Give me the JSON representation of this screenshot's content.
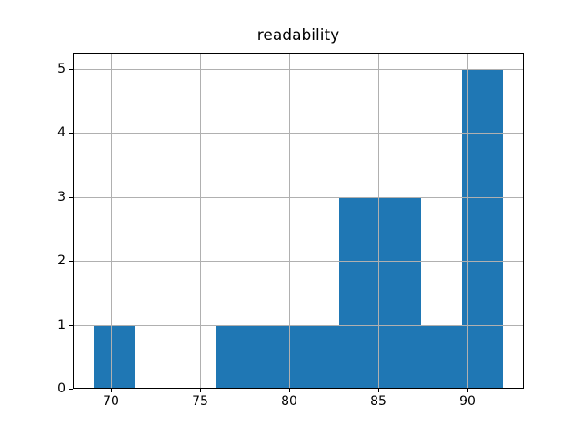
{
  "chart_data": {
    "type": "histogram",
    "title": "readability",
    "xlabel": "",
    "ylabel": "",
    "bin_edges": [
      69.0,
      71.3,
      73.6,
      75.9,
      78.2,
      80.5,
      82.8,
      85.1,
      87.4,
      89.7,
      92.0
    ],
    "counts": [
      1,
      0,
      0,
      1,
      1,
      1,
      3,
      3,
      1,
      5
    ],
    "xticks": [
      70,
      75,
      80,
      85,
      90
    ],
    "yticks": [
      0,
      1,
      2,
      3,
      4,
      5
    ],
    "xlim": [
      67.85,
      93.15
    ],
    "ylim": [
      0,
      5.25
    ],
    "grid": true,
    "legend": null,
    "colors": {
      "bar": "#1f77b4",
      "grid": "#b0b0b0",
      "spine": "#000000",
      "text": "#000000",
      "background": "#ffffff"
    }
  }
}
